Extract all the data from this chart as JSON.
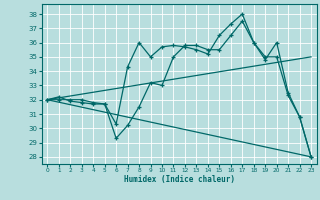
{
  "xlabel": "Humidex (Indice chaleur)",
  "bg_color": "#b8dede",
  "line_color": "#006868",
  "grid_color": "#ffffff",
  "xlim": [
    -0.5,
    23.5
  ],
  "ylim": [
    27.5,
    38.7
  ],
  "yticks": [
    28,
    29,
    30,
    31,
    32,
    33,
    34,
    35,
    36,
    37,
    38
  ],
  "xticks": [
    0,
    1,
    2,
    3,
    4,
    5,
    6,
    7,
    8,
    9,
    10,
    11,
    12,
    13,
    14,
    15,
    16,
    17,
    18,
    19,
    20,
    21,
    22,
    23
  ],
  "line1_x": [
    0,
    1,
    2,
    3,
    4,
    5,
    6,
    7,
    8,
    9,
    10,
    11,
    12,
    13,
    14,
    15,
    16,
    17,
    18,
    19,
    20,
    21,
    22,
    23
  ],
  "line1_y": [
    32,
    32.2,
    31.9,
    31.8,
    31.7,
    31.7,
    30.3,
    34.3,
    36.0,
    35.0,
    35.7,
    35.8,
    35.7,
    35.5,
    35.2,
    36.5,
    37.3,
    38.0,
    36.0,
    35.0,
    35.0,
    32.3,
    30.8,
    28.0
  ],
  "line2_x": [
    0,
    1,
    2,
    3,
    4,
    5,
    6,
    7,
    8,
    9,
    10,
    11,
    12,
    13,
    14,
    15,
    16,
    17,
    18,
    19,
    20,
    21,
    22,
    23
  ],
  "line2_y": [
    32,
    32,
    32,
    32,
    31.8,
    31.7,
    29.3,
    30.2,
    31.5,
    33.2,
    33.0,
    35.0,
    35.8,
    35.8,
    35.5,
    35.5,
    36.5,
    37.5,
    36.0,
    34.8,
    36.0,
    32.5,
    30.8,
    28.0
  ],
  "line3_x": [
    0,
    23
  ],
  "line3_y": [
    32.0,
    28.0
  ],
  "line4_x": [
    0,
    23
  ],
  "line4_y": [
    32.0,
    35.0
  ],
  "marker": "+"
}
